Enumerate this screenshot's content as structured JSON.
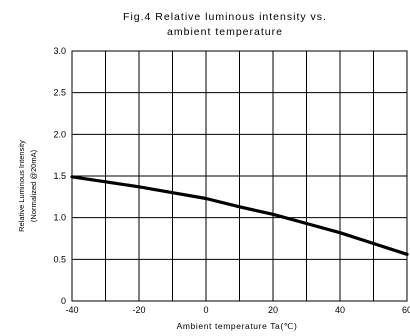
{
  "chart_data": {
    "type": "line",
    "title_lines": [
      "Fig.4 Relative luminous intensity vs.",
      "ambient temperature"
    ],
    "xlabel": "Ambient temperature Ta(℃)",
    "ylabel_lines": [
      "Relative Luminous Intensity",
      "(Normalized @20mA)"
    ],
    "xlim": [
      -40,
      60
    ],
    "ylim": [
      0,
      3.0
    ],
    "x_ticks": [
      -40,
      -20,
      0,
      20,
      40,
      60
    ],
    "x_tick_labels": [
      "-40",
      "-20",
      "0",
      "20",
      "40",
      "60"
    ],
    "x_minor_gridlines": [
      -30,
      -10,
      10,
      30,
      50
    ],
    "y_ticks": [
      0,
      0.5,
      1.0,
      1.5,
      2.0,
      2.5,
      3.0
    ],
    "y_tick_labels": [
      "0",
      "0.5",
      "1.0",
      "1.5",
      "2.0",
      "2.5",
      "3.0"
    ],
    "grid": true,
    "series": [
      {
        "x": [
          -40,
          -30,
          -20,
          -10,
          0,
          10,
          20,
          30,
          40,
          50,
          60
        ],
        "y": [
          1.49,
          1.43,
          1.37,
          1.3,
          1.23,
          1.13,
          1.04,
          0.93,
          0.82,
          0.69,
          0.56
        ],
        "color": "#000000"
      }
    ]
  }
}
